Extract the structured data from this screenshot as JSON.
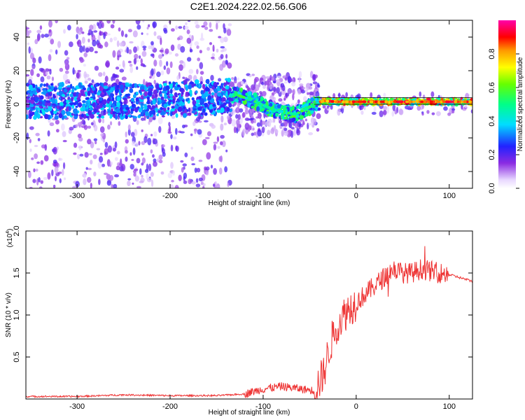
{
  "title": "C2E1.2024.222.02.56.G06",
  "chart_data": [
    {
      "type": "heatmap",
      "xlabel": "Height of straight line (km)",
      "ylabel": "Frequency (Hz)",
      "xlim": [
        -355,
        125
      ],
      "ylim": [
        -50,
        50
      ],
      "x_ticks": [
        "-300",
        "-200",
        "-100",
        "0",
        "100"
      ],
      "y_ticks": [
        "-40",
        "-20",
        "0",
        "20",
        "40"
      ],
      "colorbar": {
        "label": "Normalized spectral amplitude",
        "range": [
          0,
          1
        ],
        "ticks": [
          "0.0",
          "0.2",
          "0.4",
          "0.6",
          "0.8"
        ],
        "colormap": "rainbow (white-violet to red)"
      },
      "ridge": {
        "description": "frequency of peak spectral amplitude vs height",
        "x": [
          -355,
          -300,
          -250,
          -200,
          -150,
          -130,
          -110,
          -90,
          -75,
          -65,
          -55,
          -45,
          -35,
          -20,
          0,
          50,
          100,
          125
        ],
        "y": [
          2,
          2,
          2,
          3,
          4,
          6,
          2,
          -3,
          -5,
          -6,
          -3,
          0,
          2,
          1.5,
          1.5,
          1.5,
          1.5,
          1.5
        ]
      },
      "horizontal_lines_hz": [
        0,
        4
      ]
    },
    {
      "type": "line",
      "xlabel": "Height of straight line (km)",
      "ylabel": "SNR (10 * v/v)",
      "exponent_label": "(x10",
      "exponent_sup": "4",
      "exponent_close": ")",
      "xlim": [
        -355,
        125
      ],
      "ylim": [
        0,
        2.0
      ],
      "x_ticks": [
        "-300",
        "-200",
        "-100",
        "0",
        "100"
      ],
      "y_ticks": [
        "0.5",
        "1.0",
        "1.5",
        "2.0"
      ],
      "series": [
        {
          "color": "#ee3333",
          "x": [
            -355,
            -300,
            -250,
            -200,
            -150,
            -120,
            -100,
            -80,
            -60,
            -45,
            -35,
            -30,
            -25,
            -20,
            -10,
            0,
            10,
            20,
            30,
            40,
            50,
            60,
            70,
            80,
            90,
            100,
            110,
            125
          ],
          "y": [
            0.03,
            0.03,
            0.05,
            0.04,
            0.04,
            0.06,
            0.12,
            0.15,
            0.12,
            0.1,
            0.3,
            0.55,
            0.75,
            0.9,
            1.05,
            1.15,
            1.25,
            1.35,
            1.45,
            1.55,
            1.5,
            1.5,
            1.55,
            1.52,
            1.5,
            1.48,
            1.45,
            1.4
          ]
        }
      ]
    }
  ]
}
